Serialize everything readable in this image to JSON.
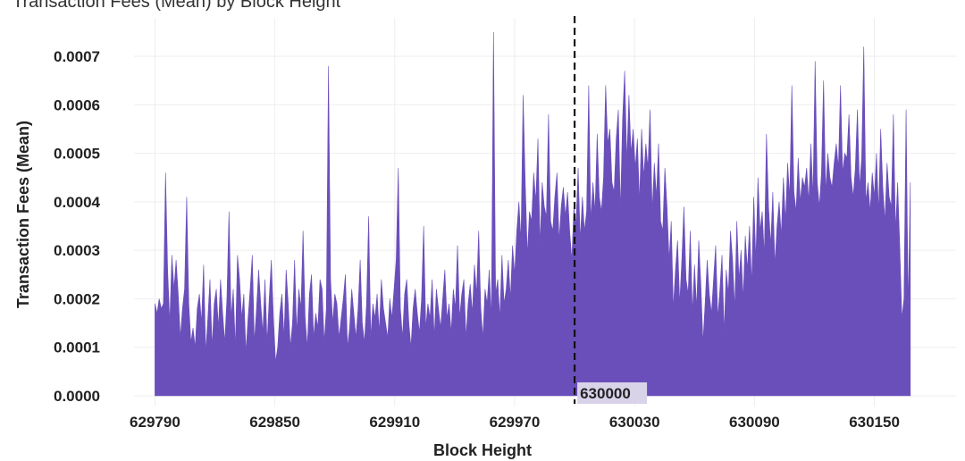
{
  "chart_data": {
    "type": "area",
    "title": "Transaction Fees (Mean) by Block Height",
    "xlabel": "Block Height",
    "ylabel": "Transaction Fees (Mean)",
    "xlim": [
      629784,
      630173
    ],
    "ylim": [
      0.0,
      0.00073
    ],
    "x_ticks": [
      "629790",
      "629850",
      "629910",
      "629970",
      "630030",
      "630090",
      "630150"
    ],
    "y_ticks": [
      "0.0000",
      "0.0001",
      "0.0002",
      "0.0003",
      "0.0004",
      "0.0005",
      "0.0006",
      "0.0007"
    ],
    "grid": true,
    "color": "#6a4fbb",
    "annotation": {
      "x": 630000,
      "label": "630000",
      "style": "dashed-vertical-line"
    },
    "series": [
      {
        "x_start": 629790,
        "x_end": 630168,
        "values": [
          0.00019,
          0.00017,
          0.0002,
          0.00018,
          0.00019,
          0.00046,
          0.00026,
          0.00015,
          0.00029,
          0.00022,
          0.00028,
          0.00021,
          0.00012,
          0.00018,
          0.00022,
          0.00041,
          0.00019,
          0.00011,
          0.00014,
          0.0001,
          0.00018,
          0.00021,
          0.00015,
          0.00027,
          9e-05,
          0.00016,
          0.00024,
          0.0001,
          0.00019,
          0.00022,
          0.00014,
          0.00024,
          0.00017,
          0.00011,
          0.0002,
          0.00038,
          0.00016,
          0.00022,
          0.0001,
          0.00029,
          0.00024,
          0.00016,
          0.00021,
          9e-05,
          0.00016,
          0.00022,
          0.00029,
          0.00011,
          0.00018,
          0.00026,
          0.00019,
          0.00013,
          0.00024,
          0.00011,
          0.0002,
          0.00028,
          0.00016,
          7e-05,
          0.0001,
          0.00017,
          0.00021,
          0.00012,
          0.00026,
          0.00019,
          0.0001,
          0.00015,
          0.00028,
          0.00013,
          0.00022,
          0.00018,
          0.00034,
          0.00016,
          0.0001,
          0.00021,
          0.00025,
          0.00012,
          0.00017,
          0.00014,
          0.00024,
          0.00022,
          0.00011,
          0.00018,
          0.00068,
          0.00024,
          0.00015,
          0.00021,
          0.00019,
          0.00012,
          0.00016,
          0.0002,
          0.00025,
          0.0001,
          0.00014,
          0.00022,
          0.00017,
          0.00012,
          0.00018,
          0.00028,
          0.00015,
          0.00011,
          0.00019,
          0.00037,
          0.00012,
          0.00019,
          0.00016,
          0.00021,
          0.00013,
          0.00024,
          0.00018,
          0.00015,
          0.00012,
          0.0002,
          0.00016,
          0.00022,
          0.00028,
          0.00047,
          0.00018,
          0.00012,
          0.00021,
          0.00024,
          0.00015,
          0.0001,
          0.00018,
          0.00022,
          0.00017,
          0.00013,
          0.0002,
          0.00035,
          0.00014,
          0.00019,
          0.00016,
          0.00024,
          0.00012,
          0.00022,
          0.00018,
          0.00014,
          0.0002,
          0.00026,
          0.00016,
          0.00019,
          0.00013,
          0.00022,
          0.00018,
          0.00031,
          0.00016,
          0.00021,
          0.00024,
          0.00012,
          0.00019,
          0.00023,
          0.00017,
          0.00027,
          0.00021,
          0.00034,
          0.00018,
          0.00012,
          0.00022,
          0.00019,
          0.00026,
          0.00016,
          0.00075,
          0.00021,
          0.00024,
          0.00016,
          0.00029,
          0.00019,
          0.00022,
          0.00028,
          0.0002,
          0.00031,
          0.00025,
          0.00034,
          0.0004,
          0.00032,
          0.00062,
          0.00044,
          0.00029,
          0.00038,
          0.00036,
          0.00046,
          0.0004,
          0.00053,
          0.00031,
          0.00044,
          0.00039,
          0.00037,
          0.00058,
          0.00036,
          0.00034,
          0.00041,
          0.00046,
          0.00032,
          0.00039,
          0.00043,
          0.00037,
          0.00042,
          0.00034,
          0.00028,
          0.00039,
          0.00035,
          0.00047,
          0.00032,
          0.00041,
          0.00034,
          0.00038,
          0.00064,
          0.00036,
          0.00044,
          0.00038,
          0.00054,
          0.00041,
          0.00038,
          0.00045,
          0.00064,
          0.00052,
          0.00055,
          0.00044,
          0.00042,
          0.00053,
          0.00059,
          0.00038,
          0.00057,
          0.00067,
          0.00048,
          0.00062,
          0.0005,
          0.00055,
          0.00047,
          0.00053,
          0.0004,
          0.00055,
          0.00045,
          0.00052,
          0.00047,
          0.00059,
          0.00038,
          0.00048,
          0.00041,
          0.00052,
          0.00036,
          0.00034,
          0.00047,
          0.00039,
          0.00028,
          0.00036,
          0.00018,
          0.00026,
          0.00032,
          0.00019,
          0.00028,
          0.00039,
          0.00024,
          0.00021,
          0.00034,
          0.00017,
          0.00027,
          0.00018,
          0.00032,
          0.00023,
          0.00011,
          0.00019,
          0.00028,
          0.00021,
          0.00017,
          0.00024,
          0.00031,
          0.00016,
          0.00022,
          0.00029,
          0.00013,
          0.00026,
          0.00021,
          0.00034,
          0.00028,
          0.00018,
          0.00036,
          0.00024,
          0.0003,
          0.0002,
          0.00033,
          0.00026,
          0.00035,
          0.00023,
          0.00041,
          0.00028,
          0.00045,
          0.00034,
          0.00038,
          0.00029,
          0.00054,
          0.00039,
          0.00031,
          0.00042,
          0.00027,
          0.00035,
          0.0004,
          0.00033,
          0.00045,
          0.00036,
          0.00048,
          0.00041,
          0.00064,
          0.00042,
          0.00038,
          0.00049,
          0.0004,
          0.00045,
          0.00043,
          0.00047,
          0.0004,
          0.00052,
          0.00041,
          0.00069,
          0.00044,
          0.00039,
          0.00046,
          0.00065,
          0.00042,
          0.0005,
          0.00045,
          0.00043,
          0.00048,
          0.00052,
          0.00047,
          0.00064,
          0.00046,
          0.0005,
          0.00049,
          0.00058,
          0.00045,
          0.00041,
          0.00047,
          0.00059,
          0.00043,
          0.00049,
          0.00072,
          0.0004,
          0.00044,
          0.00038,
          0.00046,
          0.00041,
          0.0005,
          0.00038,
          0.00055,
          0.00043,
          0.00036,
          0.00048,
          0.00041,
          0.00039,
          0.00058,
          0.00034,
          0.00044,
          0.00031,
          0.00016,
          0.0002,
          0.00059,
          0.00018,
          0.00044
        ]
      }
    ]
  }
}
